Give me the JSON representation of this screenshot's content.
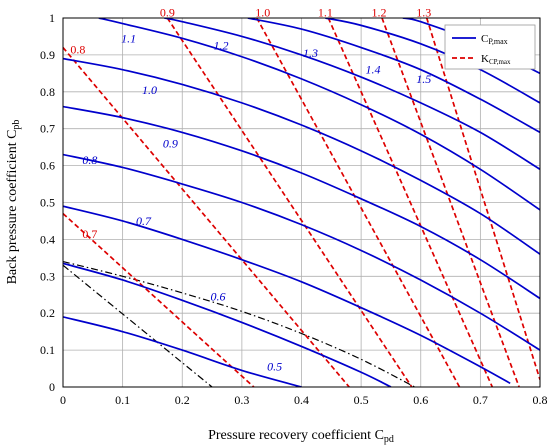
{
  "chart_data": {
    "type": "line",
    "xlabel": "Pressure recovery coefficient C",
    "xlabel_sub": "pd",
    "ylabel": "Back pressure coefficient C",
    "ylabel_sub": "pb",
    "xlim": [
      0,
      0.8
    ],
    "ylim": [
      0,
      1
    ],
    "x_ticks": [
      "0",
      "0.1",
      "0.2",
      "0.3",
      "0.4",
      "0.5",
      "0.6",
      "0.7",
      "0.8"
    ],
    "y_ticks": [
      "0",
      "0.1",
      "0.2",
      "0.3",
      "0.4",
      "0.5",
      "0.6",
      "0.7",
      "0.8",
      "0.9",
      "1"
    ],
    "grid": true,
    "legend": {
      "position": "top-right",
      "entries": [
        {
          "text": "C",
          "sub": "P,max",
          "color": "#0000cc",
          "style": "solid"
        },
        {
          "text": "K",
          "sub": "CP,max",
          "color": "#dd0000",
          "style": "dashed"
        }
      ]
    },
    "colors": {
      "cp_max": "#0000cc",
      "k_cp_max": "#dd0000",
      "envelope": "#000000"
    },
    "cp_max_series": [
      {
        "name": "0.5",
        "points": [
          [
            0,
            0.19
          ],
          [
            0.1,
            0.15
          ],
          [
            0.2,
            0.1
          ],
          [
            0.3,
            0.045
          ],
          [
            0.4,
            0
          ]
        ],
        "label_at": [
          0.355,
          0.055
        ]
      },
      {
        "name": "0.6",
        "points": [
          [
            0,
            0.335
          ],
          [
            0.1,
            0.29
          ],
          [
            0.2,
            0.235
          ],
          [
            0.3,
            0.175
          ],
          [
            0.4,
            0.11
          ],
          [
            0.5,
            0.04
          ],
          [
            0.55,
            0
          ]
        ],
        "label_at": [
          0.26,
          0.245
        ]
      },
      {
        "name": "0.7",
        "points": [
          [
            0,
            0.49
          ],
          [
            0.1,
            0.45
          ],
          [
            0.2,
            0.4
          ],
          [
            0.3,
            0.345
          ],
          [
            0.4,
            0.285
          ],
          [
            0.5,
            0.215
          ],
          [
            0.6,
            0.14
          ],
          [
            0.7,
            0.055
          ],
          [
            0.75,
            0.01
          ]
        ],
        "label_at": [
          0.135,
          0.45
        ]
      },
      {
        "name": "0.8",
        "points": [
          [
            0,
            0.63
          ],
          [
            0.1,
            0.595
          ],
          [
            0.2,
            0.55
          ],
          [
            0.3,
            0.5
          ],
          [
            0.4,
            0.44
          ],
          [
            0.5,
            0.37
          ],
          [
            0.6,
            0.29
          ],
          [
            0.7,
            0.2
          ],
          [
            0.8,
            0.1
          ]
        ],
        "label_at": [
          0.045,
          0.615
        ]
      },
      {
        "name": "0.9",
        "points": [
          [
            0,
            0.76
          ],
          [
            0.1,
            0.73
          ],
          [
            0.2,
            0.69
          ],
          [
            0.3,
            0.64
          ],
          [
            0.4,
            0.58
          ],
          [
            0.5,
            0.51
          ],
          [
            0.6,
            0.435
          ],
          [
            0.7,
            0.345
          ],
          [
            0.8,
            0.24
          ]
        ],
        "label_at": [
          0.18,
          0.66
        ]
      },
      {
        "name": "1.0",
        "points": [
          [
            0,
            0.89
          ],
          [
            0.1,
            0.86
          ],
          [
            0.2,
            0.82
          ],
          [
            0.3,
            0.77
          ],
          [
            0.4,
            0.71
          ],
          [
            0.5,
            0.64
          ],
          [
            0.6,
            0.56
          ],
          [
            0.7,
            0.47
          ],
          [
            0.8,
            0.36
          ]
        ],
        "label_at": [
          0.145,
          0.805
        ]
      },
      {
        "name": "1.1",
        "points": [
          [
            0.06,
            1
          ],
          [
            0.1,
            0.985
          ],
          [
            0.2,
            0.945
          ],
          [
            0.3,
            0.895
          ],
          [
            0.4,
            0.835
          ],
          [
            0.5,
            0.765
          ],
          [
            0.6,
            0.685
          ],
          [
            0.7,
            0.59
          ],
          [
            0.8,
            0.48
          ]
        ],
        "label_at": [
          0.11,
          0.945
        ]
      },
      {
        "name": "1.2",
        "points": [
          [
            0.17,
            1
          ],
          [
            0.2,
            0.99
          ],
          [
            0.3,
            0.95
          ],
          [
            0.4,
            0.9
          ],
          [
            0.5,
            0.84
          ],
          [
            0.6,
            0.77
          ],
          [
            0.7,
            0.69
          ],
          [
            0.8,
            0.59
          ]
        ],
        "label_at": [
          0.265,
          0.925
        ]
      },
      {
        "name": "1.3",
        "points": [
          [
            0.31,
            1
          ],
          [
            0.4,
            0.97
          ],
          [
            0.5,
            0.92
          ],
          [
            0.6,
            0.86
          ],
          [
            0.7,
            0.78
          ],
          [
            0.8,
            0.69
          ]
        ],
        "label_at": [
          0.415,
          0.905
        ]
      },
      {
        "name": "1.4",
        "points": [
          [
            0.44,
            1
          ],
          [
            0.5,
            0.98
          ],
          [
            0.6,
            0.93
          ],
          [
            0.7,
            0.86
          ],
          [
            0.8,
            0.77
          ]
        ],
        "label_at": [
          0.52,
          0.86
        ]
      },
      {
        "name": "1.5",
        "points": [
          [
            0.57,
            1
          ],
          [
            0.6,
            0.99
          ],
          [
            0.7,
            0.93
          ],
          [
            0.8,
            0.85
          ]
        ],
        "label_at": [
          0.605,
          0.835
        ]
      }
    ],
    "k_cp_max_series": [
      {
        "name": "0.7",
        "points": [
          [
            0,
            0.47
          ],
          [
            0.32,
            0
          ]
        ],
        "label_at": [
          0.045,
          0.415
        ]
      },
      {
        "name": "0.8",
        "points": [
          [
            0,
            0.92
          ],
          [
            0.48,
            0
          ]
        ],
        "label_at": [
          0.025,
          0.915
        ]
      },
      {
        "name": "0.9",
        "points": [
          [
            0.175,
            1
          ],
          [
            0.585,
            0
          ]
        ],
        "label_at": [
          0.175,
          1.015
        ]
      },
      {
        "name": "1.0",
        "points": [
          [
            0.325,
            1
          ],
          [
            0.665,
            0
          ]
        ],
        "label_at": [
          0.335,
          1.015
        ]
      },
      {
        "name": "1.1",
        "points": [
          [
            0.445,
            1
          ],
          [
            0.72,
            0
          ]
        ],
        "label_at": [
          0.44,
          1.015
        ]
      },
      {
        "name": "1.2",
        "points": [
          [
            0.535,
            1
          ],
          [
            0.765,
            0
          ]
        ],
        "label_at": [
          0.53,
          1.015
        ]
      },
      {
        "name": "1.3",
        "points": [
          [
            0.61,
            1
          ],
          [
            0.8,
            0.02
          ]
        ],
        "label_at": [
          0.605,
          1.015
        ]
      }
    ],
    "envelope_series": [
      {
        "style": "dashdot",
        "points": [
          [
            0,
            0.34
          ],
          [
            0.1,
            0.3
          ],
          [
            0.2,
            0.255
          ],
          [
            0.3,
            0.205
          ],
          [
            0.4,
            0.145
          ],
          [
            0.5,
            0.075
          ],
          [
            0.59,
            0
          ]
        ]
      },
      {
        "style": "dashdot",
        "points": [
          [
            0,
            0.33
          ],
          [
            0.25,
            0
          ]
        ]
      }
    ]
  }
}
